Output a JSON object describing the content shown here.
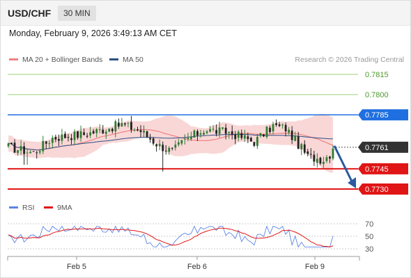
{
  "header": {
    "symbol": "USD/CHF",
    "timeframe": "30 MIN"
  },
  "datetime": "Monday, February 9, 2026 3:49:13 AM CET",
  "legend": {
    "ma20_label": "MA 20 + Bollinger Bands",
    "ma50_label": "MA 50",
    "credit": "Research © 2026 Trading Central",
    "rsi_label": "RSI",
    "rsi_ma_label": "9MA"
  },
  "colors": {
    "ma20": "#f08080",
    "ma50": "#2b4f86",
    "bollinger_fill": "#f7caca",
    "resistance_green": "#9bd27a",
    "pivot_blue": "#1f6fe0",
    "support_red": "#e01515",
    "last_price_bg": "#333333",
    "arrow": "#2b5aa0",
    "rsi": "#5b85e6",
    "rsi_ma": "#e01515",
    "candle_up": "#2e7d32",
    "candle_down": "#222222"
  },
  "chart_data": {
    "type": "candlestick",
    "ylim": [
      0.7715,
      0.7825
    ],
    "levels": [
      {
        "value": "0.7815",
        "kind": "resistance"
      },
      {
        "value": "0.7800",
        "kind": "resistance"
      },
      {
        "value": "0.7785",
        "kind": "pivot"
      },
      {
        "value": "0.7761",
        "kind": "last"
      },
      {
        "value": "0.7745",
        "kind": "support"
      },
      {
        "value": "0.7730",
        "kind": "support"
      }
    ],
    "x_ticks": [
      "Feb 5",
      "Feb 6",
      "Feb 9"
    ],
    "forecast_arrow": {
      "from": 0.7761,
      "to": 0.773
    },
    "rsi": {
      "ylim": [
        20,
        80
      ],
      "ticks": [
        "70",
        "50",
        "30"
      ]
    }
  }
}
